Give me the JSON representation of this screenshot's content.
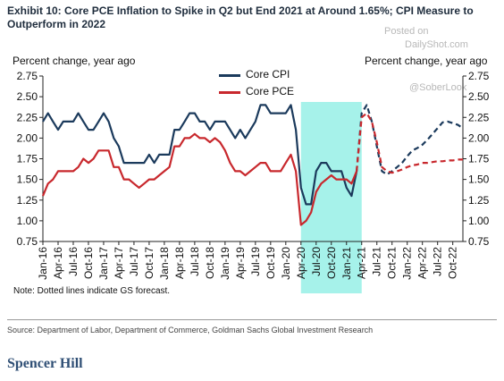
{
  "header": {
    "title": "Exhibit 10: Core PCE Inflation to Spike in Q2 but End 2021 at Around 1.65%; CPI Measure to Outperform in 2022"
  },
  "watermarks": {
    "posted_on": "Posted on",
    "site": "DailyShot.com",
    "handle": "@SoberLook"
  },
  "footer": {
    "note": "Note: Dotted lines indicate GS forecast.",
    "source": "Source: Department of Labor, Department of Commerce, Goldman Sachs Global Investment Research",
    "author": "Spencer Hill"
  },
  "colors": {
    "core_cpi": "#1b3a5c",
    "core_pce": "#c8282d",
    "highlight": "#a6f2ea"
  },
  "chart_data": {
    "type": "line",
    "ylabel_left": "Percent change, year ago",
    "ylabel_right": "Percent change, year ago",
    "ylim": [
      0.75,
      2.75
    ],
    "yticks": [
      "0.75",
      "1.00",
      "1.25",
      "1.50",
      "1.75",
      "2.00",
      "2.25",
      "2.50",
      "2.75"
    ],
    "xlim": [
      "2016-01",
      "2022-12"
    ],
    "xticks": [
      "Jan-16",
      "Apr-16",
      "Jul-16",
      "Oct-16",
      "Jan-17",
      "Apr-17",
      "Jul-17",
      "Oct-17",
      "Jan-18",
      "Apr-18",
      "Jul-18",
      "Oct-18",
      "Jan-19",
      "Apr-19",
      "Jul-19",
      "Oct-19",
      "Jan-20",
      "Apr-20",
      "Jul-20",
      "Oct-20",
      "Jan-21",
      "Apr-21",
      "Jul-21",
      "Oct-21",
      "Jan-22",
      "Apr-22",
      "Jul-22",
      "Oct-22"
    ],
    "highlight_range": [
      "2020-04",
      "2021-04"
    ],
    "legend": {
      "position": "top-center"
    },
    "grid": false,
    "series": [
      {
        "name": "Core CPI",
        "style": "solid",
        "x": [
          "2016-01",
          "2016-02",
          "2016-03",
          "2016-04",
          "2016-05",
          "2016-06",
          "2016-07",
          "2016-08",
          "2016-09",
          "2016-10",
          "2016-11",
          "2016-12",
          "2017-01",
          "2017-02",
          "2017-03",
          "2017-04",
          "2017-05",
          "2017-06",
          "2017-07",
          "2017-08",
          "2017-09",
          "2017-10",
          "2017-11",
          "2017-12",
          "2018-01",
          "2018-02",
          "2018-03",
          "2018-04",
          "2018-05",
          "2018-06",
          "2018-07",
          "2018-08",
          "2018-09",
          "2018-10",
          "2018-11",
          "2018-12",
          "2019-01",
          "2019-02",
          "2019-03",
          "2019-04",
          "2019-05",
          "2019-06",
          "2019-07",
          "2019-08",
          "2019-09",
          "2019-10",
          "2019-11",
          "2019-12",
          "2020-01",
          "2020-02",
          "2020-03",
          "2020-04",
          "2020-05",
          "2020-06",
          "2020-07",
          "2020-08",
          "2020-09",
          "2020-10",
          "2020-11",
          "2020-12",
          "2021-01",
          "2021-02",
          "2021-03"
        ],
        "values": [
          2.2,
          2.3,
          2.2,
          2.1,
          2.2,
          2.2,
          2.2,
          2.3,
          2.2,
          2.1,
          2.1,
          2.2,
          2.3,
          2.2,
          2.0,
          1.9,
          1.7,
          1.7,
          1.7,
          1.7,
          1.7,
          1.8,
          1.7,
          1.8,
          1.8,
          1.8,
          2.1,
          2.1,
          2.2,
          2.3,
          2.3,
          2.2,
          2.2,
          2.1,
          2.2,
          2.2,
          2.2,
          2.1,
          2.0,
          2.1,
          2.0,
          2.1,
          2.2,
          2.4,
          2.4,
          2.3,
          2.3,
          2.3,
          2.3,
          2.4,
          2.1,
          1.4,
          1.2,
          1.2,
          1.6,
          1.7,
          1.7,
          1.6,
          1.6,
          1.6,
          1.4,
          1.3,
          1.6
        ]
      },
      {
        "name": "Core CPI",
        "style": "dashed",
        "x": [
          "2021-03",
          "2021-04",
          "2021-05",
          "2021-06",
          "2021-07",
          "2021-08",
          "2021-09",
          "2021-10",
          "2021-11",
          "2021-12",
          "2022-01",
          "2022-02",
          "2022-03",
          "2022-04",
          "2022-05",
          "2022-06",
          "2022-07",
          "2022-08",
          "2022-09",
          "2022-10",
          "2022-11",
          "2022-12"
        ],
        "values": [
          1.6,
          2.3,
          2.4,
          2.2,
          1.9,
          1.6,
          1.56,
          1.6,
          1.65,
          1.7,
          1.78,
          1.85,
          1.88,
          1.92,
          1.98,
          2.05,
          2.12,
          2.19,
          2.2,
          2.18,
          2.16,
          2.12
        ]
      },
      {
        "name": "Core PCE",
        "style": "solid",
        "x": [
          "2016-01",
          "2016-02",
          "2016-03",
          "2016-04",
          "2016-05",
          "2016-06",
          "2016-07",
          "2016-08",
          "2016-09",
          "2016-10",
          "2016-11",
          "2016-12",
          "2017-01",
          "2017-02",
          "2017-03",
          "2017-04",
          "2017-05",
          "2017-06",
          "2017-07",
          "2017-08",
          "2017-09",
          "2017-10",
          "2017-11",
          "2017-12",
          "2018-01",
          "2018-02",
          "2018-03",
          "2018-04",
          "2018-05",
          "2018-06",
          "2018-07",
          "2018-08",
          "2018-09",
          "2018-10",
          "2018-11",
          "2018-12",
          "2019-01",
          "2019-02",
          "2019-03",
          "2019-04",
          "2019-05",
          "2019-06",
          "2019-07",
          "2019-08",
          "2019-09",
          "2019-10",
          "2019-11",
          "2019-12",
          "2020-01",
          "2020-02",
          "2020-03",
          "2020-04",
          "2020-05",
          "2020-06",
          "2020-07",
          "2020-08",
          "2020-09",
          "2020-10",
          "2020-11",
          "2020-12",
          "2021-01",
          "2021-02",
          "2021-03"
        ],
        "values": [
          1.3,
          1.45,
          1.5,
          1.6,
          1.6,
          1.6,
          1.6,
          1.65,
          1.75,
          1.7,
          1.75,
          1.85,
          1.85,
          1.85,
          1.65,
          1.65,
          1.5,
          1.5,
          1.45,
          1.4,
          1.45,
          1.5,
          1.5,
          1.55,
          1.6,
          1.65,
          1.9,
          1.9,
          2.0,
          2.0,
          2.05,
          2.0,
          2.0,
          1.95,
          2.0,
          1.95,
          1.85,
          1.7,
          1.6,
          1.6,
          1.55,
          1.6,
          1.65,
          1.7,
          1.7,
          1.6,
          1.6,
          1.6,
          1.7,
          1.8,
          1.6,
          0.95,
          1.0,
          1.1,
          1.35,
          1.45,
          1.5,
          1.55,
          1.5,
          1.5,
          1.5,
          1.45,
          1.6
        ]
      },
      {
        "name": "Core PCE",
        "style": "dashed",
        "x": [
          "2021-03",
          "2021-04",
          "2021-05",
          "2021-06",
          "2021-07",
          "2021-08",
          "2021-09",
          "2021-10",
          "2021-11",
          "2021-12",
          "2022-01",
          "2022-02",
          "2022-03",
          "2022-04",
          "2022-05",
          "2022-06",
          "2022-07",
          "2022-08",
          "2022-09",
          "2022-10",
          "2022-11",
          "2022-12"
        ],
        "values": [
          1.6,
          2.25,
          2.3,
          2.2,
          1.95,
          1.65,
          1.6,
          1.58,
          1.6,
          1.62,
          1.65,
          1.67,
          1.68,
          1.7,
          1.7,
          1.71,
          1.72,
          1.72,
          1.73,
          1.73,
          1.74,
          1.74
        ]
      }
    ]
  }
}
